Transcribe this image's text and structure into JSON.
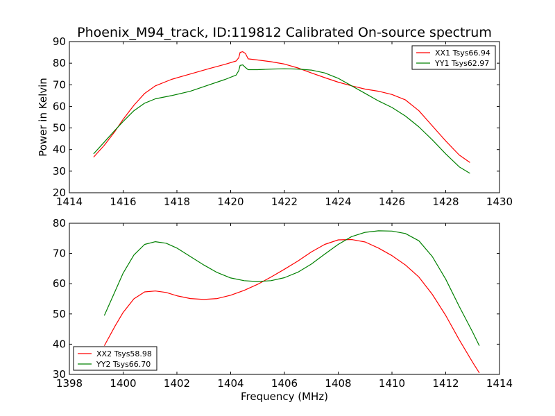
{
  "figure_title": "Phoenix_M94_track, ID:119812 Calibrated On-source spectrum",
  "chart_data": [
    {
      "type": "line",
      "title": "Phoenix_M94_track, ID:119812 Calibrated On-source spectrum",
      "xlabel": "",
      "ylabel": "Power in Kelvin",
      "xlim": [
        1414,
        1430
      ],
      "ylim": [
        20,
        90
      ],
      "xticks": [
        1414,
        1416,
        1418,
        1420,
        1422,
        1424,
        1426,
        1428,
        1430
      ],
      "yticks": [
        20,
        30,
        40,
        50,
        60,
        70,
        80,
        90
      ],
      "grid": false,
      "legend_position": "top-right",
      "series": [
        {
          "name": "XX1 Tsys66.94",
          "color": "#ff0000",
          "x": [
            1414.9,
            1415.3,
            1415.7,
            1416.0,
            1416.4,
            1416.8,
            1417.2,
            1417.8,
            1418.5,
            1419.2,
            1419.8,
            1420.2,
            1420.3,
            1420.35,
            1420.45,
            1420.55,
            1420.65,
            1421.0,
            1421.5,
            1422.0,
            1422.5,
            1423.0,
            1423.5,
            1424.0,
            1424.5,
            1425.0,
            1425.5,
            1426.0,
            1426.5,
            1427.0,
            1427.5,
            1428.0,
            1428.5,
            1428.9
          ],
          "values": [
            36.5,
            42,
            48.5,
            54,
            60.5,
            66,
            69.5,
            72.5,
            75,
            77.5,
            79.5,
            81,
            82.5,
            85,
            85.3,
            84.5,
            82,
            81.5,
            80.7,
            79.6,
            77.8,
            75.5,
            73.3,
            71.2,
            69.5,
            68,
            67,
            65.5,
            63,
            58,
            51,
            44,
            37.5,
            34
          ]
        },
        {
          "name": "YY1 Tsys62.97",
          "color": "#008000",
          "x": [
            1414.9,
            1415.3,
            1415.7,
            1416.0,
            1416.4,
            1416.8,
            1417.2,
            1417.8,
            1418.5,
            1419.2,
            1419.8,
            1420.2,
            1420.3,
            1420.35,
            1420.45,
            1420.55,
            1420.65,
            1421.0,
            1421.5,
            1422.0,
            1422.5,
            1423.0,
            1423.5,
            1424.0,
            1424.5,
            1425.0,
            1425.5,
            1426.0,
            1426.5,
            1427.0,
            1427.5,
            1428.0,
            1428.5,
            1428.9
          ],
          "values": [
            38,
            43.5,
            49,
            53,
            58,
            61.5,
            63.5,
            65,
            67,
            70,
            72.5,
            74.5,
            76.5,
            79,
            79.2,
            78,
            77,
            77,
            77.3,
            77.4,
            77.3,
            76.8,
            75.5,
            73,
            69.5,
            66,
            62.5,
            59.5,
            55.5,
            50.5,
            44.5,
            38,
            32,
            29
          ]
        }
      ]
    },
    {
      "type": "line",
      "title": "",
      "xlabel": "Frequency (MHz)",
      "ylabel": "",
      "xlim": [
        1398,
        1414
      ],
      "ylim": [
        30,
        80
      ],
      "xticks": [
        1398,
        1400,
        1402,
        1404,
        1406,
        1408,
        1410,
        1412,
        1414
      ],
      "yticks": [
        30,
        40,
        50,
        60,
        70,
        80
      ],
      "grid": false,
      "legend_position": "bottom-left",
      "series": [
        {
          "name": "XX2 Tsys58.98",
          "color": "#ff0000",
          "x": [
            1399.3,
            1399.7,
            1400.0,
            1400.4,
            1400.8,
            1401.2,
            1401.6,
            1402.0,
            1402.5,
            1403.0,
            1403.5,
            1404.0,
            1404.5,
            1405.0,
            1405.5,
            1406.0,
            1406.5,
            1407.0,
            1407.5,
            1408.0,
            1408.5,
            1409.0,
            1409.5,
            1410.0,
            1410.5,
            1411.0,
            1411.5,
            1412.0,
            1412.5,
            1413.0,
            1413.25
          ],
          "values": [
            39.5,
            46,
            50.5,
            55,
            57.3,
            57.6,
            57.1,
            56,
            55.1,
            54.8,
            55.1,
            56.2,
            57.8,
            59.8,
            62.2,
            64.8,
            67.5,
            70.5,
            73,
            74.5,
            74.6,
            73.8,
            71.8,
            69.3,
            66.2,
            62.2,
            56.5,
            49.5,
            41.5,
            34,
            30.5
          ]
        },
        {
          "name": "YY2 Tsys66.70",
          "color": "#008000",
          "x": [
            1399.3,
            1399.7,
            1400.0,
            1400.4,
            1400.8,
            1401.2,
            1401.6,
            1402.0,
            1402.5,
            1403.0,
            1403.5,
            1404.0,
            1404.5,
            1405.0,
            1405.5,
            1406.0,
            1406.5,
            1407.0,
            1407.5,
            1408.0,
            1408.5,
            1409.0,
            1409.5,
            1410.0,
            1410.5,
            1411.0,
            1411.5,
            1412.0,
            1412.5,
            1413.0,
            1413.25
          ],
          "values": [
            49.5,
            57.5,
            63.5,
            69.5,
            73,
            73.9,
            73.4,
            71.8,
            69,
            66.2,
            63.7,
            61.9,
            61,
            60.7,
            61,
            62,
            63.8,
            66.5,
            69.8,
            73,
            75.6,
            77,
            77.5,
            77.4,
            76.6,
            74.2,
            69,
            61.5,
            52.5,
            44,
            39.5
          ]
        }
      ]
    }
  ]
}
